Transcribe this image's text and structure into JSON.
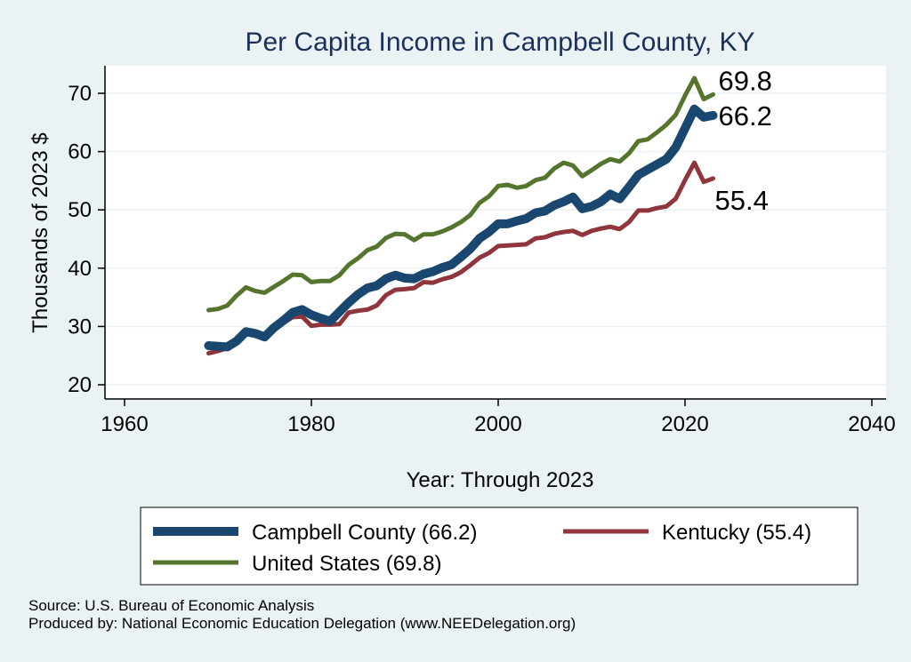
{
  "chart_data": {
    "type": "line",
    "title": "Per Capita Income in Campbell County, KY",
    "xlabel": "Year: Through 2023",
    "ylabel": "Thousands of 2023 $",
    "xlim": [
      1960,
      2040
    ],
    "ylim": [
      20,
      75
    ],
    "xticks": [
      1960,
      1980,
      2000,
      2020,
      2040
    ],
    "yticks": [
      20,
      30,
      40,
      50,
      60,
      70
    ],
    "grid": true,
    "legend_position": "bottom",
    "x": [
      1969,
      1970,
      1971,
      1972,
      1973,
      1974,
      1975,
      1976,
      1977,
      1978,
      1979,
      1980,
      1981,
      1982,
      1983,
      1984,
      1985,
      1986,
      1987,
      1988,
      1989,
      1990,
      1991,
      1992,
      1993,
      1994,
      1995,
      1996,
      1997,
      1998,
      1999,
      2000,
      2001,
      2002,
      2003,
      2004,
      2005,
      2006,
      2007,
      2008,
      2009,
      2010,
      2011,
      2012,
      2013,
      2014,
      2015,
      2016,
      2017,
      2018,
      2019,
      2020,
      2021,
      2022,
      2023
    ],
    "series": [
      {
        "name": "Campbell County (66.2)",
        "color": "#1a476f",
        "end_label": "66.2",
        "values": [
          26.7,
          26.6,
          26.5,
          27.5,
          29.1,
          28.8,
          28.2,
          29.8,
          31.0,
          32.4,
          32.9,
          32.0,
          31.4,
          30.9,
          32.5,
          34.1,
          35.5,
          36.6,
          37.0,
          38.2,
          38.8,
          38.3,
          38.2,
          39.0,
          39.4,
          40.1,
          40.6,
          41.9,
          43.3,
          45.1,
          46.2,
          47.6,
          47.6,
          48.1,
          48.5,
          49.5,
          49.8,
          50.8,
          51.4,
          52.2,
          50.2,
          50.6,
          51.4,
          52.7,
          51.9,
          53.9,
          56.0,
          56.9,
          57.8,
          58.7,
          60.7,
          64.0,
          67.3,
          65.9,
          66.2
        ]
      },
      {
        "name": "Kentucky (55.4)",
        "color": "#90353b",
        "end_label": "55.4",
        "values": [
          25.4,
          25.8,
          26.3,
          27.6,
          29.0,
          29.0,
          28.6,
          29.8,
          30.6,
          31.6,
          31.7,
          30.1,
          30.3,
          30.3,
          30.4,
          32.4,
          32.7,
          32.9,
          33.6,
          35.4,
          36.3,
          36.4,
          36.6,
          37.6,
          37.5,
          38.1,
          38.5,
          39.3,
          40.5,
          41.8,
          42.6,
          43.8,
          43.9,
          44.0,
          44.1,
          45.1,
          45.3,
          45.9,
          46.2,
          46.4,
          45.7,
          46.4,
          46.8,
          47.1,
          46.7,
          47.9,
          49.9,
          49.9,
          50.3,
          50.6,
          51.9,
          55.1,
          58.1,
          54.8,
          55.4
        ]
      },
      {
        "name": "United States (69.8)",
        "color": "#55752f",
        "end_label": "69.8",
        "values": [
          32.8,
          33.0,
          33.6,
          35.3,
          36.7,
          36.1,
          35.8,
          36.8,
          37.8,
          38.9,
          38.8,
          37.6,
          37.8,
          37.8,
          38.8,
          40.6,
          41.7,
          43.1,
          43.7,
          45.2,
          45.9,
          45.8,
          44.8,
          45.8,
          45.8,
          46.3,
          47.0,
          47.9,
          49.1,
          51.2,
          52.3,
          54.1,
          54.3,
          53.8,
          54.1,
          55.1,
          55.5,
          57.1,
          58.1,
          57.6,
          55.8,
          56.8,
          57.9,
          58.7,
          58.3,
          59.7,
          61.8,
          62.1,
          63.3,
          64.6,
          66.3,
          69.6,
          72.6,
          69.0,
          69.8
        ]
      }
    ]
  },
  "legend": {
    "items": [
      {
        "label": "Campbell County (66.2)",
        "color": "#1a476f"
      },
      {
        "label": "Kentucky (55.4)",
        "color": "#90353b"
      },
      {
        "label": "United States (69.8)",
        "color": "#55752f"
      }
    ]
  },
  "source": {
    "line1": "Source: U.S. Bureau of Economic Analysis",
    "line2": "Produced by: National Economic Education Delegation (www.NEEDelegation.org)"
  }
}
